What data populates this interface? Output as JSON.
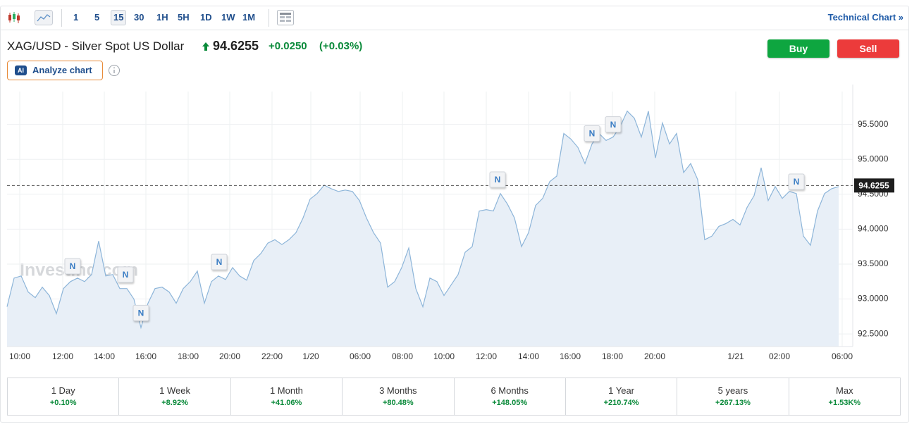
{
  "toolbar": {
    "intervals": [
      "1",
      "5",
      "15",
      "30",
      "1H",
      "5H",
      "1D",
      "1W",
      "1M"
    ],
    "selected": 2,
    "link": "Technical Chart »"
  },
  "header": {
    "symbol": "XAG/USD - Silver Spot US Dollar",
    "price": "94.6255",
    "change": "+0.0250",
    "change_pct": "(+0.03%)",
    "ai_badge": "AI",
    "analyze": "Analyze chart",
    "buy": "Buy",
    "sell": "Sell"
  },
  "chart_data": {
    "type": "area",
    "watermark": "Investing.com",
    "color": "#8db5d9",
    "fill": "#e8eff7",
    "values": [
      92.89,
      93.3,
      93.33,
      93.1,
      93.02,
      93.17,
      93.05,
      92.79,
      93.15,
      93.25,
      93.3,
      93.25,
      93.35,
      93.83,
      93.33,
      93.35,
      93.15,
      93.15,
      93.0,
      92.59,
      92.94,
      93.15,
      93.17,
      93.1,
      92.94,
      93.15,
      93.25,
      93.4,
      92.94,
      93.25,
      93.33,
      93.28,
      93.45,
      93.33,
      93.27,
      93.55,
      93.65,
      93.8,
      93.85,
      93.78,
      93.85,
      93.95,
      94.16,
      94.43,
      94.51,
      94.63,
      94.58,
      94.54,
      94.56,
      94.54,
      94.41,
      94.16,
      93.95,
      93.8,
      93.17,
      93.25,
      93.45,
      93.73,
      93.15,
      92.89,
      93.3,
      93.25,
      93.05,
      93.2,
      93.35,
      93.67,
      93.75,
      94.26,
      94.28,
      94.26,
      94.51,
      94.36,
      94.16,
      93.75,
      93.95,
      94.34,
      94.44,
      94.68,
      94.76,
      95.37,
      95.29,
      95.17,
      94.94,
      95.22,
      95.37,
      95.27,
      95.32,
      95.47,
      95.69,
      95.59,
      95.32,
      95.69,
      95.02,
      95.52,
      95.22,
      95.37,
      94.81,
      94.94,
      94.71,
      93.85,
      93.9,
      94.04,
      94.08,
      94.14,
      94.06,
      94.31,
      94.48,
      94.88,
      94.41,
      94.61,
      94.44,
      94.54,
      94.51,
      93.9,
      93.77,
      94.26,
      94.51,
      94.58,
      94.61
    ],
    "xlim": [
      0,
      118.7
    ],
    "ylim": [
      92.32,
      95.97
    ],
    "xticks": [
      {
        "value": 1.8,
        "label": "10:00"
      },
      {
        "value": 7.9,
        "label": "12:00"
      },
      {
        "value": 13.8,
        "label": "14:00"
      },
      {
        "value": 19.7,
        "label": "16:00"
      },
      {
        "value": 25.7,
        "label": "18:00"
      },
      {
        "value": 31.6,
        "label": "20:00"
      },
      {
        "value": 37.6,
        "label": "22:00"
      },
      {
        "value": 43.1,
        "label": "1/20"
      },
      {
        "value": 50.1,
        "label": "06:00"
      },
      {
        "value": 56.1,
        "label": "08:00"
      },
      {
        "value": 62,
        "label": "10:00"
      },
      {
        "value": 68,
        "label": "12:00"
      },
      {
        "value": 74,
        "label": "14:00"
      },
      {
        "value": 79.9,
        "label": "16:00"
      },
      {
        "value": 85.9,
        "label": "18:00"
      },
      {
        "value": 91.9,
        "label": "20:00"
      },
      {
        "value": 103.4,
        "label": "1/21"
      },
      {
        "value": 109.6,
        "label": "02:00"
      },
      {
        "value": 118.5,
        "label": "06:00"
      }
    ],
    "yticks": [
      {
        "value": 92.5,
        "label": "92.5000"
      },
      {
        "value": 93,
        "label": "93.0000"
      },
      {
        "value": 93.5,
        "label": "93.5000"
      },
      {
        "value": 94,
        "label": "94.0000"
      },
      {
        "value": 94.5,
        "label": "94.5000"
      },
      {
        "value": 95,
        "label": "95.0000"
      },
      {
        "value": 95.5,
        "label": "95.5000"
      }
    ],
    "grid": true,
    "current": {
      "value": 94.6255,
      "label": "94.6255"
    },
    "annotations": [
      {
        "x": 9.3,
        "y": 93.47,
        "text": "N"
      },
      {
        "x": 16.8,
        "y": 93.35,
        "text": "N"
      },
      {
        "x": 19,
        "y": 92.8,
        "text": "N"
      },
      {
        "x": 30.1,
        "y": 93.53,
        "text": "N"
      },
      {
        "x": 69.6,
        "y": 94.71,
        "text": "N"
      },
      {
        "x": 83,
        "y": 95.37,
        "text": "N"
      },
      {
        "x": 86,
        "y": 95.5,
        "text": "N"
      },
      {
        "x": 112,
        "y": 94.68,
        "text": "N"
      }
    ]
  },
  "periods": [
    {
      "name": "1 Day",
      "change": "+0.10%"
    },
    {
      "name": "1 Week",
      "change": "+8.92%"
    },
    {
      "name": "1 Month",
      "change": "+41.06%"
    },
    {
      "name": "3 Months",
      "change": "+80.48%"
    },
    {
      "name": "6 Months",
      "change": "+148.05%"
    },
    {
      "name": "1 Year",
      "change": "+210.74%"
    },
    {
      "name": "5 years",
      "change": "+267.13%"
    },
    {
      "name": "Max",
      "change": "+1.53K%"
    }
  ]
}
